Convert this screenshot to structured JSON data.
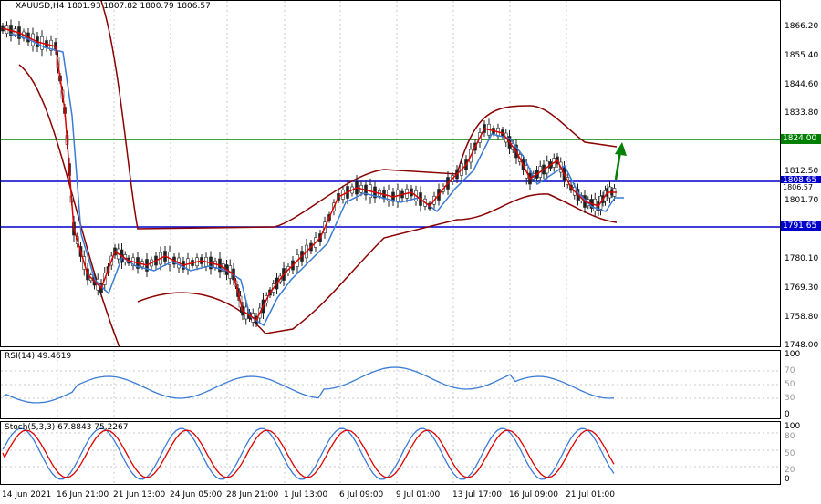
{
  "main_chart": {
    "title": "XAUUSD,H4  1801.93 1807.82 1800.79 1806.57",
    "price_axis": [
      "1866.20",
      "1855.40",
      "1844.60",
      "1833.80",
      "1823.00",
      "1812.50",
      "1801.70",
      "1780.10",
      "1769.30",
      "1758.80",
      "1748.00"
    ],
    "levels": [
      {
        "price": "1824.00",
        "color": "#008000"
      },
      {
        "price": "1808.65",
        "color": "#0000cc"
      },
      {
        "price": "1806.57",
        "color": "#000000"
      },
      {
        "price": "1791.65",
        "color": "#0000cc"
      }
    ]
  },
  "rsi": {
    "title": "RSI(14) 49.4619",
    "axis": [
      "100",
      "70",
      "50",
      "30",
      "0"
    ]
  },
  "stoch": {
    "title": "Stoch(5,3,3) 67.8843 75.2267",
    "axis": [
      "100",
      "80",
      "50",
      "20",
      "0"
    ]
  },
  "time_axis": [
    "14 Jun 2021",
    "16 Jun 21:00",
    "21 Jun 13:00",
    "24 Jun 05:00",
    "28 Jun 21:00",
    "1 Jul 13:00",
    "6 Jul 09:00",
    "9 Jul 01:00",
    "13 Jul 17:00",
    "16 Jul 09:00",
    "21 Jul 01:00"
  ],
  "colors": {
    "ma_fast": "#dd0000",
    "ma_slow": "#3a7bd5",
    "bands": "#8b0000",
    "candles": "#222222",
    "arrow": "#008000"
  }
}
